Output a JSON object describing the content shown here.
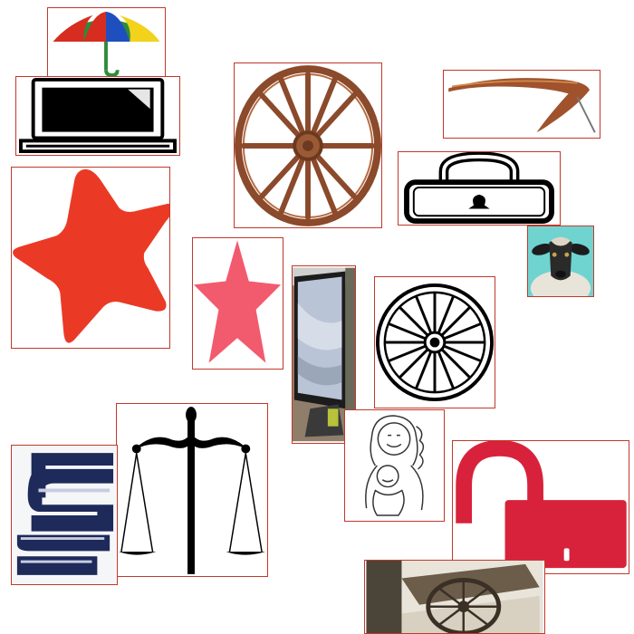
{
  "canvas": {
    "background": "#ffffff"
  },
  "tile_border_color": "#c0392b",
  "tiles": [
    {
      "icon": "umbrella-icon",
      "colors": [
        "#2e8b3a",
        "#d62d20",
        "#1f4fbf",
        "#f2d21b"
      ]
    },
    {
      "icon": "laptop-icon",
      "colors": [
        "#000000"
      ]
    },
    {
      "icon": "wagon-wheel-icon",
      "colors": [
        "#8b4a2b"
      ]
    },
    {
      "icon": "scythe-icon",
      "colors": [
        "#a0522d"
      ]
    },
    {
      "icon": "padlock-closed-icon",
      "colors": [
        "#000000"
      ]
    },
    {
      "icon": "star-icon",
      "colors": [
        "#ea3a25"
      ]
    },
    {
      "icon": "star-icon",
      "colors": [
        "#f25a6e"
      ]
    },
    {
      "icon": "sheep-photo-icon",
      "colors": [
        "#6fd3d0"
      ]
    },
    {
      "icon": "monitor-photo-icon",
      "colors": [
        "#9aa7b8"
      ]
    },
    {
      "icon": "wagon-wheel-sketch-icon",
      "colors": [
        "#000000"
      ]
    },
    {
      "icon": "scales-of-justice-icon",
      "colors": [
        "#000000"
      ]
    },
    {
      "icon": "mother-child-sketch-icon",
      "colors": [
        "#333333"
      ]
    },
    {
      "icon": "logo-s-icon",
      "colors": [
        "#1e2a5a"
      ]
    },
    {
      "icon": "padlock-open-icon",
      "colors": [
        "#d8223c"
      ]
    },
    {
      "icon": "cart-wheel-photo-icon",
      "colors": [
        "#5a4a3a"
      ]
    }
  ]
}
